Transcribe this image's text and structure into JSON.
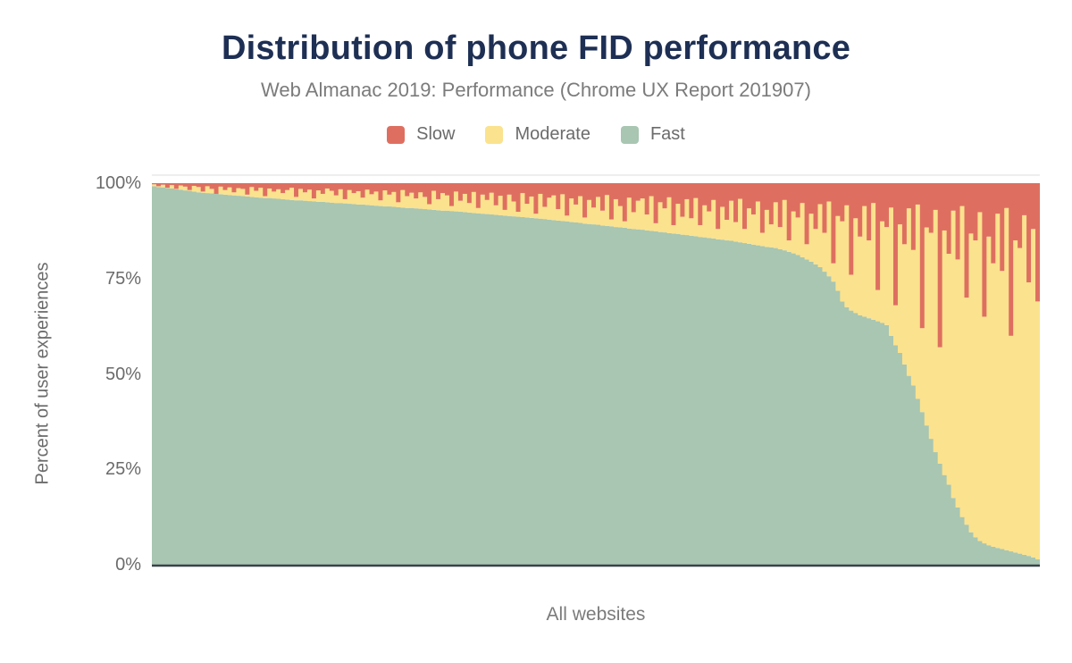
{
  "title": "Distribution of phone FID performance",
  "subtitle": "Web Almanac 2019: Performance (Chrome UX Report 201907)",
  "legend": [
    {
      "label": "Slow",
      "color": "#de6f60"
    },
    {
      "label": "Moderate",
      "color": "#fbe28e"
    },
    {
      "label": "Fast",
      "color": "#a8c6b2"
    }
  ],
  "y_axis": {
    "title": "Percent of user experiences",
    "ticks": [
      {
        "label": "100%",
        "value": 100
      },
      {
        "label": "75%",
        "value": 75
      },
      {
        "label": "50%",
        "value": 50
      },
      {
        "label": "25%",
        "value": 25
      },
      {
        "label": "0%",
        "value": 0
      }
    ]
  },
  "x_axis": {
    "title": "All websites"
  },
  "colors": {
    "title": "#1e2f54",
    "muted_text": "#6b6b6b",
    "slow": "#de6f60",
    "moderate": "#fbe28e",
    "fast": "#a8c6b2",
    "axis_line": "#3a424a",
    "top_border": "#e8e8e8",
    "background": "#ffffff"
  },
  "chart_data": {
    "type": "bar",
    "stacked": true,
    "normalized_to_100pct": true,
    "title": "Distribution of phone FID performance",
    "subtitle": "Web Almanac 2019: Performance (Chrome UX Report 201907)",
    "xlabel": "All websites",
    "ylabel": "Percent of user experiences",
    "ylim": [
      0,
      100
    ],
    "y_ticks": [
      "0%",
      "25%",
      "50%",
      "75%",
      "100%"
    ],
    "legend_position": "top",
    "grid": false,
    "note": "Hundreds of thin columns (one per website) sorted by Fast share descending; values below are per-column estimates read from pixels. Moderate = 100 - Fast - Slow.",
    "units": "%",
    "series": [
      {
        "name": "Slow",
        "color": "#de6f60",
        "values": [
          0.3,
          0.8,
          0.4,
          1.2,
          0.5,
          1.5,
          0.6,
          0.9,
          1.8,
          0.7,
          1.0,
          2.2,
          0.8,
          1.5,
          2.8,
          0.9,
          1.8,
          1.1,
          2.4,
          1.3,
          1.5,
          3.0,
          1.0,
          2.0,
          1.2,
          3.4,
          1.4,
          2.2,
          1.6,
          2.6,
          1.8,
          1.2,
          3.6,
          1.5,
          2.4,
          1.7,
          4.0,
          1.9,
          2.8,
          1.4,
          2.0,
          3.2,
          1.6,
          4.2,
          1.8,
          2.6,
          2.1,
          3.8,
          1.7,
          2.9,
          2.2,
          4.5,
          1.9,
          3.0,
          2.3,
          5.0,
          1.8,
          3.4,
          2.5,
          4.0,
          2.4,
          3.6,
          5.5,
          2.0,
          4.2,
          2.6,
          3.2,
          6.0,
          2.2,
          4.6,
          2.8,
          5.2,
          2.3,
          6.5,
          3.0,
          4.4,
          2.5,
          5.8,
          3.3,
          7.0,
          3.0,
          4.8,
          7.5,
          2.6,
          5.4,
          3.5,
          8.0,
          2.8,
          6.2,
          3.8,
          3.2,
          6.8,
          2.9,
          8.5,
          4.0,
          5.6,
          3.4,
          9.0,
          4.4,
          6.4,
          3.6,
          7.2,
          3.1,
          9.5,
          4.2,
          6.0,
          10.0,
          3.8,
          7.6,
          4.6,
          4.0,
          8.2,
          3.4,
          10.5,
          5.0,
          6.6,
          3.7,
          11.0,
          5.4,
          8.8,
          4.2,
          9.2,
          3.9,
          11.0,
          5.8,
          7.4,
          4.4,
          12.0,
          6.2,
          9.6,
          4.6,
          10.2,
          4.1,
          12.0,
          6.6,
          8.2,
          4.8,
          13.0,
          7.0,
          10.8,
          5.0,
          11.5,
          4.4,
          15.0,
          7.4,
          9.0,
          5.2,
          16.0,
          8.0,
          12.0,
          5.5,
          13.0,
          4.8,
          21.0,
          8.6,
          10.0,
          5.8,
          24.0,
          9.2,
          14.0,
          6.0,
          15.0,
          5.2,
          28.0,
          10.0,
          11.5,
          6.4,
          32.0,
          10.8,
          16.0,
          6.6,
          17.5,
          5.6,
          38.0,
          11.6,
          13.0,
          7.0,
          43.0,
          12.4,
          18.5,
          7.2,
          20.0,
          6.0,
          30.0,
          13.2,
          15.0,
          7.6,
          35.0,
          14.0,
          21.0,
          8.0,
          23.0,
          6.5,
          40.0,
          15.0,
          17.0,
          8.4,
          26.0,
          12.0,
          31.0
        ]
      },
      {
        "name": "Moderate",
        "color": "#fbe28e",
        "values": [],
        "remainder_of_100": true
      },
      {
        "name": "Fast",
        "color": "#a8c6b2",
        "values": [
          99.2,
          99.0,
          98.9,
          98.7,
          98.6,
          98.4,
          98.3,
          98.1,
          98.0,
          97.8,
          97.6,
          97.5,
          97.4,
          97.3,
          97.2,
          97.1,
          97.0,
          96.9,
          96.8,
          96.7,
          96.6,
          96.5,
          96.4,
          96.3,
          96.2,
          96.1,
          96.1,
          96.0,
          95.9,
          95.8,
          95.7,
          95.6,
          95.5,
          95.5,
          95.4,
          95.3,
          95.2,
          95.1,
          95.1,
          95.0,
          94.9,
          94.8,
          94.8,
          94.7,
          94.6,
          94.5,
          94.4,
          94.4,
          94.3,
          94.2,
          94.1,
          94.0,
          93.9,
          93.9,
          93.8,
          93.7,
          93.6,
          93.5,
          93.5,
          93.4,
          93.3,
          93.2,
          93.1,
          93.0,
          92.9,
          92.8,
          92.8,
          92.7,
          92.6,
          92.5,
          92.4,
          92.3,
          92.2,
          92.1,
          92.0,
          91.9,
          91.8,
          91.7,
          91.6,
          91.5,
          91.4,
          91.3,
          91.2,
          91.1,
          91.0,
          90.9,
          90.8,
          90.7,
          90.6,
          90.4,
          90.3,
          90.2,
          90.1,
          90.0,
          89.8,
          89.7,
          89.6,
          89.4,
          89.3,
          89.2,
          89.1,
          88.9,
          88.8,
          88.7,
          88.5,
          88.4,
          88.3,
          88.1,
          88.0,
          87.9,
          87.8,
          87.6,
          87.5,
          87.4,
          87.2,
          87.1,
          86.9,
          86.8,
          86.7,
          86.5,
          86.4,
          86.2,
          86.1,
          85.9,
          85.8,
          85.6,
          85.5,
          85.3,
          85.2,
          85.0,
          84.9,
          84.7,
          84.5,
          84.3,
          84.1,
          83.9,
          83.7,
          83.5,
          83.3,
          83.2,
          83.0,
          82.7,
          82.4,
          82.0,
          81.6,
          81.2,
          80.6,
          80.0,
          79.4,
          78.7,
          78.0,
          76.8,
          75.6,
          74.2,
          71.8,
          69.0,
          67.5,
          66.6,
          66.0,
          65.4,
          65.0,
          64.6,
          64.2,
          63.8,
          63.4,
          62.8,
          60.0,
          57.5,
          55.5,
          52.5,
          49.5,
          47.0,
          43.5,
          40.0,
          36.5,
          33.0,
          29.5,
          26.5,
          23.5,
          21.0,
          17.5,
          15.0,
          12.5,
          10.5,
          8.5,
          7.2,
          6.2,
          5.6,
          5.1,
          4.7,
          4.4,
          4.1,
          3.8,
          3.5,
          3.2,
          2.9,
          2.6,
          2.3,
          1.9,
          1.4
        ]
      }
    ]
  }
}
